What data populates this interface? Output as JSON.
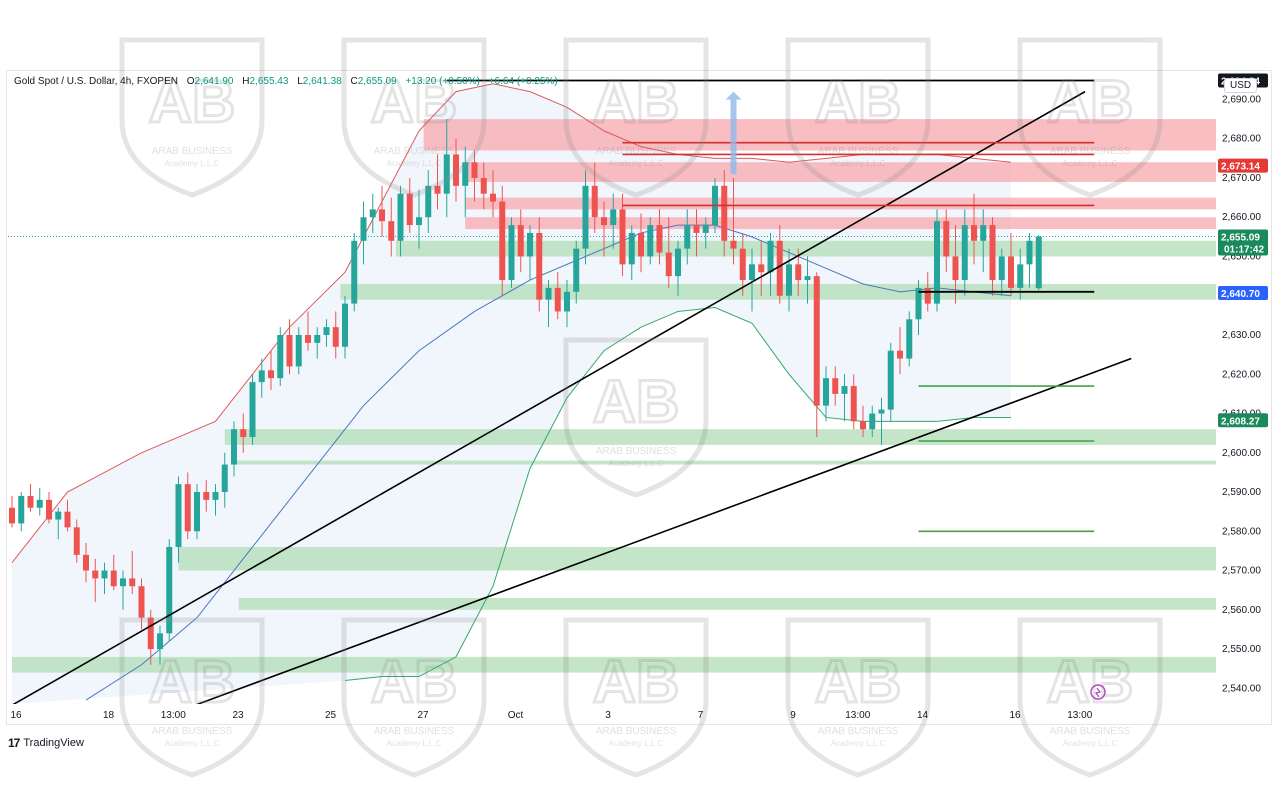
{
  "header": {
    "symbol": "Gold Spot / U.S. Dollar, 4h, FXOPEN",
    "open_label": "O",
    "open": "2,641.90",
    "high_label": "H",
    "high": "2,655.43",
    "low_label": "L",
    "low": "2,641.38",
    "close_label": "C",
    "close": "2,655.09",
    "change": "+13.20 (+0.50%)",
    "change2": "+6.64 (+0.25%)"
  },
  "currency": "USD",
  "branding": {
    "tradingview": "TradingView"
  },
  "watermark": {
    "line1": "ARAB BUSINESS",
    "line2": "Academy L.L.C"
  },
  "colors": {
    "up": "#26a69a",
    "down": "#ef5350",
    "resistance_zone": "#f7a8ad",
    "support_zone": "#b5dfb9",
    "upper_band": "#e05a5e",
    "lower_band": "#36a86a",
    "ma": "#4a78c0",
    "trendline": "#000000",
    "price_tag_green": "#1b8a5a",
    "price_tag_red": "#e53935",
    "price_tag_blue": "#2962ff"
  },
  "chart_data": {
    "type": "candlestick",
    "title": "Gold Spot / U.S. Dollar, 4h, FXOPEN",
    "ylim": [
      2536,
      2697
    ],
    "y_ticks": [
      "2,540.00",
      "2,550.00",
      "2,560.00",
      "2,570.00",
      "2,580.00",
      "2,590.00",
      "2,600.00",
      "2,610.00",
      "2,620.00",
      "2,630.00",
      "2,640.00",
      "2,650.00",
      "2,660.00",
      "2,670.00",
      "2,680.00",
      "2,690.00"
    ],
    "x_ticks": [
      {
        "label": "16",
        "bar": 0
      },
      {
        "label": "18",
        "bar": 10
      },
      {
        "label": "13:00",
        "bar": 17
      },
      {
        "label": "23",
        "bar": 24
      },
      {
        "label": "25",
        "bar": 34
      },
      {
        "label": "27",
        "bar": 44
      },
      {
        "label": "Oct",
        "bar": 54
      },
      {
        "label": "3",
        "bar": 64
      },
      {
        "label": "7",
        "bar": 74
      },
      {
        "label": "9",
        "bar": 84
      },
      {
        "label": "13:00",
        "bar": 91
      },
      {
        "label": "14",
        "bar": 98
      },
      {
        "label": "16",
        "bar": 108
      },
      {
        "label": "13:00",
        "bar": 115
      }
    ],
    "candles": [
      [
        2586,
        2589,
        2581,
        2582
      ],
      [
        2582,
        2590,
        2580,
        2589
      ],
      [
        2589,
        2592,
        2585,
        2586
      ],
      [
        2586,
        2591,
        2584,
        2588
      ],
      [
        2588,
        2590,
        2582,
        2583
      ],
      [
        2583,
        2586,
        2578,
        2585
      ],
      [
        2585,
        2588,
        2580,
        2581
      ],
      [
        2581,
        2583,
        2572,
        2574
      ],
      [
        2574,
        2577,
        2567,
        2570
      ],
      [
        2570,
        2573,
        2562,
        2568
      ],
      [
        2568,
        2572,
        2564,
        2570
      ],
      [
        2570,
        2574,
        2565,
        2566
      ],
      [
        2566,
        2570,
        2560,
        2568
      ],
      [
        2568,
        2575,
        2564,
        2566
      ],
      [
        2566,
        2568,
        2555,
        2558
      ],
      [
        2558,
        2560,
        2546,
        2550
      ],
      [
        2550,
        2556,
        2546,
        2554
      ],
      [
        2554,
        2578,
        2552,
        2576
      ],
      [
        2576,
        2594,
        2572,
        2592
      ],
      [
        2592,
        2595,
        2578,
        2580
      ],
      [
        2580,
        2592,
        2578,
        2590
      ],
      [
        2590,
        2593,
        2585,
        2588
      ],
      [
        2588,
        2592,
        2584,
        2590
      ],
      [
        2590,
        2600,
        2586,
        2597
      ],
      [
        2597,
        2608,
        2594,
        2606
      ],
      [
        2606,
        2610,
        2600,
        2604
      ],
      [
        2604,
        2620,
        2602,
        2618
      ],
      [
        2618,
        2624,
        2614,
        2621
      ],
      [
        2621,
        2626,
        2616,
        2619
      ],
      [
        2619,
        2632,
        2617,
        2630
      ],
      [
        2630,
        2634,
        2620,
        2622
      ],
      [
        2622,
        2632,
        2620,
        2630
      ],
      [
        2630,
        2636,
        2626,
        2628
      ],
      [
        2628,
        2632,
        2624,
        2630
      ],
      [
        2630,
        2634,
        2627,
        2632
      ],
      [
        2632,
        2636,
        2624,
        2627
      ],
      [
        2627,
        2640,
        2624,
        2638
      ],
      [
        2638,
        2656,
        2636,
        2654
      ],
      [
        2654,
        2664,
        2648,
        2660
      ],
      [
        2660,
        2666,
        2656,
        2662
      ],
      [
        2662,
        2668,
        2655,
        2659
      ],
      [
        2659,
        2665,
        2650,
        2654
      ],
      [
        2654,
        2668,
        2650,
        2666
      ],
      [
        2666,
        2670,
        2656,
        2658
      ],
      [
        2658,
        2667,
        2652,
        2660
      ],
      [
        2660,
        2672,
        2656,
        2668
      ],
      [
        2668,
        2676,
        2662,
        2666
      ],
      [
        2666,
        2685,
        2660,
        2676
      ],
      [
        2676,
        2680,
        2664,
        2668
      ],
      [
        2668,
        2678,
        2660,
        2674
      ],
      [
        2674,
        2677,
        2664,
        2670
      ],
      [
        2670,
        2674,
        2662,
        2666
      ],
      [
        2666,
        2672,
        2660,
        2664
      ],
      [
        2664,
        2668,
        2640,
        2644
      ],
      [
        2644,
        2660,
        2642,
        2658
      ],
      [
        2658,
        2662,
        2646,
        2650
      ],
      [
        2650,
        2658,
        2644,
        2656
      ],
      [
        2656,
        2660,
        2636,
        2639
      ],
      [
        2639,
        2644,
        2632,
        2642
      ],
      [
        2642,
        2646,
        2634,
        2636
      ],
      [
        2636,
        2644,
        2632,
        2641
      ],
      [
        2641,
        2654,
        2638,
        2652
      ],
      [
        2652,
        2672,
        2648,
        2668
      ],
      [
        2668,
        2674,
        2656,
        2660
      ],
      [
        2660,
        2664,
        2650,
        2658
      ],
      [
        2658,
        2666,
        2652,
        2662
      ],
      [
        2662,
        2666,
        2645,
        2648
      ],
      [
        2648,
        2658,
        2644,
        2656
      ],
      [
        2656,
        2661,
        2646,
        2650
      ],
      [
        2650,
        2660,
        2648,
        2658
      ],
      [
        2658,
        2662,
        2648,
        2651
      ],
      [
        2651,
        2660,
        2642,
        2645
      ],
      [
        2645,
        2654,
        2640,
        2652
      ],
      [
        2652,
        2662,
        2648,
        2658
      ],
      [
        2658,
        2662,
        2650,
        2656
      ],
      [
        2656,
        2660,
        2652,
        2658
      ],
      [
        2658,
        2670,
        2656,
        2668
      ],
      [
        2668,
        2672,
        2650,
        2654
      ],
      [
        2654,
        2670,
        2648,
        2652
      ],
      [
        2652,
        2656,
        2640,
        2644
      ],
      [
        2644,
        2652,
        2636,
        2648
      ],
      [
        2648,
        2654,
        2640,
        2646
      ],
      [
        2646,
        2656,
        2640,
        2654
      ],
      [
        2654,
        2658,
        2638,
        2640
      ],
      [
        2640,
        2652,
        2636,
        2648
      ],
      [
        2648,
        2652,
        2640,
        2644
      ],
      [
        2644,
        2650,
        2638,
        2645
      ],
      [
        2645,
        2646,
        2604,
        2612
      ],
      [
        2612,
        2622,
        2608,
        2619
      ],
      [
        2619,
        2622,
        2612,
        2615
      ],
      [
        2615,
        2620,
        2608,
        2617
      ],
      [
        2617,
        2620,
        2606,
        2608
      ],
      [
        2608,
        2612,
        2604,
        2606
      ],
      [
        2606,
        2612,
        2604,
        2610
      ],
      [
        2610,
        2614,
        2602,
        2611
      ],
      [
        2611,
        2628,
        2608,
        2626
      ],
      [
        2626,
        2632,
        2620,
        2624
      ],
      [
        2624,
        2636,
        2622,
        2634
      ],
      [
        2634,
        2644,
        2630,
        2642
      ],
      [
        2642,
        2646,
        2636,
        2638
      ],
      [
        2638,
        2662,
        2636,
        2659
      ],
      [
        2659,
        2662,
        2646,
        2650
      ],
      [
        2650,
        2658,
        2638,
        2644
      ],
      [
        2644,
        2662,
        2640,
        2658
      ],
      [
        2658,
        2666,
        2648,
        2654
      ],
      [
        2654,
        2662,
        2646,
        2658
      ],
      [
        2658,
        2660,
        2640,
        2644
      ],
      [
        2644,
        2652,
        2640,
        2650
      ],
      [
        2650,
        2656,
        2640,
        2642
      ],
      [
        2642,
        2652,
        2639,
        2648
      ],
      [
        2648,
        2656,
        2642,
        2654
      ],
      [
        2641.9,
        2655.43,
        2641.38,
        2655.09
      ]
    ],
    "series": [
      {
        "name": "upper band",
        "values": [
          [
            0,
            2572
          ],
          [
            6,
            2590
          ],
          [
            14,
            2600
          ],
          [
            22,
            2608
          ],
          [
            30,
            2632
          ],
          [
            36,
            2646
          ],
          [
            40,
            2664
          ],
          [
            44,
            2682
          ],
          [
            48,
            2692
          ],
          [
            52,
            2694
          ],
          [
            56,
            2692
          ],
          [
            60,
            2688
          ],
          [
            64,
            2682
          ],
          [
            68,
            2678
          ],
          [
            72,
            2676
          ],
          [
            76,
            2675
          ],
          [
            80,
            2675
          ],
          [
            84,
            2674
          ],
          [
            88,
            2675
          ],
          [
            92,
            2676
          ],
          [
            96,
            2676
          ],
          [
            100,
            2676
          ],
          [
            104,
            2675
          ],
          [
            108,
            2674
          ]
        ]
      },
      {
        "name": "moving average",
        "values": [
          [
            8,
            2537
          ],
          [
            14,
            2546
          ],
          [
            20,
            2558
          ],
          [
            26,
            2576
          ],
          [
            32,
            2594
          ],
          [
            38,
            2612
          ],
          [
            44,
            2626
          ],
          [
            50,
            2636
          ],
          [
            56,
            2644
          ],
          [
            62,
            2650
          ],
          [
            68,
            2656
          ],
          [
            72,
            2658
          ],
          [
            76,
            2658
          ],
          [
            80,
            2655
          ],
          [
            84,
            2651
          ],
          [
            88,
            2647
          ],
          [
            92,
            2643
          ],
          [
            96,
            2641
          ],
          [
            100,
            2642
          ],
          [
            104,
            2641
          ],
          [
            108,
            2640
          ]
        ]
      },
      {
        "name": "lower band",
        "values": [
          [
            36,
            2542
          ],
          [
            40,
            2543
          ],
          [
            44,
            2543
          ],
          [
            48,
            2548
          ],
          [
            52,
            2566
          ],
          [
            56,
            2596
          ],
          [
            60,
            2614
          ],
          [
            64,
            2626
          ],
          [
            68,
            2632
          ],
          [
            72,
            2636
          ],
          [
            76,
            2637
          ],
          [
            80,
            2633
          ],
          [
            84,
            2620
          ],
          [
            88,
            2609
          ],
          [
            92,
            2608
          ],
          [
            96,
            2608
          ],
          [
            100,
            2608
          ],
          [
            104,
            2609
          ],
          [
            108,
            2609
          ]
        ]
      }
    ],
    "resistance_zones": [
      [
        2677,
        2685
      ],
      [
        2669,
        2674
      ],
      [
        2662,
        2665
      ],
      [
        2657,
        2660
      ]
    ],
    "support_zones": [
      [
        2650,
        2654
      ],
      [
        2639,
        2643
      ],
      [
        2602,
        2606
      ],
      [
        2597,
        2598
      ],
      [
        2570,
        2576
      ],
      [
        2560,
        2563
      ],
      [
        2544,
        2548
      ]
    ],
    "trendlines": [
      {
        "from": [
          -2,
          2533
        ],
        "to": [
          116,
          2692
        ]
      },
      {
        "from": [
          19,
          2535
        ],
        "to": [
          121,
          2624
        ]
      }
    ],
    "horizontal_levels": [
      {
        "y": 2694.84,
        "from": 47,
        "to": 117,
        "color": "black"
      },
      {
        "y": 2679,
        "from": 66,
        "to": 117,
        "color": "red"
      },
      {
        "y": 2676,
        "from": 66,
        "to": 117,
        "color": "red"
      },
      {
        "y": 2663,
        "from": 66,
        "to": 117,
        "color": "red"
      },
      {
        "y": 2641,
        "from": 98,
        "to": 117,
        "color": "black"
      },
      {
        "y": 2617,
        "from": 98,
        "to": 117,
        "color": "green"
      },
      {
        "y": 2603,
        "from": 98,
        "to": 117,
        "color": "green"
      },
      {
        "y": 2580,
        "from": 98,
        "to": 117,
        "color": "green"
      }
    ],
    "price_tags": [
      {
        "price": 2694.84,
        "text": "2,694.84",
        "color": "black"
      },
      {
        "price": 2673.14,
        "text": "2,673.14",
        "color": "red"
      },
      {
        "price": 2655.09,
        "text": "2,655.09",
        "sub": "01:17:42",
        "color": "green"
      },
      {
        "price": 2640.7,
        "text": "2,640.70",
        "color": "blue"
      },
      {
        "price": 2608.27,
        "text": "2,608.27",
        "color": "green"
      }
    ],
    "current_price": 2655.09
  }
}
